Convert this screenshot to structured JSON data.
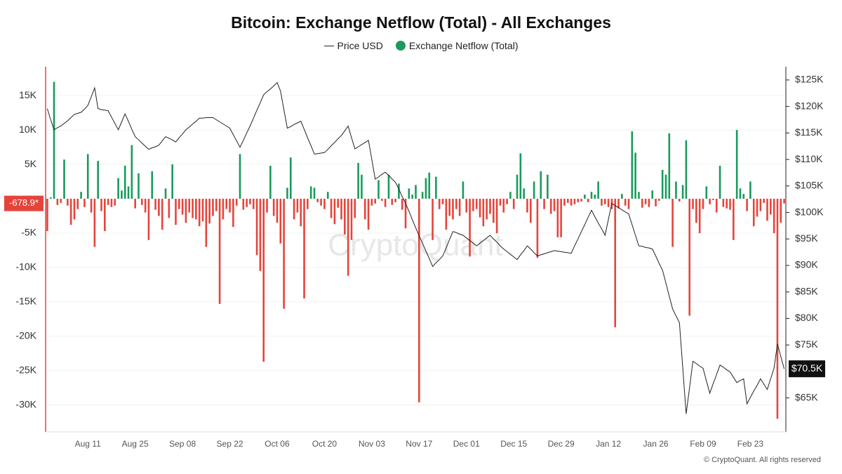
{
  "chart_data": {
    "type": "bar",
    "title": "Bitcoin: Exchange Netflow (Total) - All Exchanges",
    "watermark": "CryptoQuant",
    "credit": "© CryptoQuant. All rights reserved",
    "grid": true,
    "x": [
      "Jul 30",
      "Jul 31",
      "Aug 01",
      "Aug 02",
      "Aug 03",
      "Aug 04",
      "Aug 05",
      "Aug 06",
      "Aug 07",
      "Aug 08",
      "Aug 09",
      "Aug 10",
      "Aug 11",
      "Aug 12",
      "Aug 13",
      "Aug 14",
      "Aug 15",
      "Aug 16",
      "Aug 17",
      "Aug 18",
      "Aug 19",
      "Aug 20",
      "Aug 21",
      "Aug 22",
      "Aug 23",
      "Aug 24",
      "Aug 25",
      "Aug 26",
      "Aug 27",
      "Aug 28",
      "Aug 29",
      "Aug 30",
      "Aug 31",
      "Sep 01",
      "Sep 02",
      "Sep 03",
      "Sep 04",
      "Sep 05",
      "Sep 06",
      "Sep 07",
      "Sep 08",
      "Sep 09",
      "Sep 10",
      "Sep 11",
      "Sep 12",
      "Sep 13",
      "Sep 14",
      "Sep 15",
      "Sep 16",
      "Sep 17",
      "Sep 18",
      "Sep 19",
      "Sep 20",
      "Sep 21",
      "Sep 22",
      "Sep 23",
      "Sep 24",
      "Sep 25",
      "Sep 26",
      "Sep 27",
      "Sep 28",
      "Sep 29",
      "Sep 30",
      "Oct 01",
      "Oct 02",
      "Oct 03",
      "Oct 04",
      "Oct 05",
      "Oct 06",
      "Oct 07",
      "Oct 08",
      "Oct 09",
      "Oct 10",
      "Oct 11",
      "Oct 12",
      "Oct 13",
      "Oct 14",
      "Oct 15",
      "Oct 16",
      "Oct 17",
      "Oct 18",
      "Oct 19",
      "Oct 20",
      "Oct 21",
      "Oct 22",
      "Oct 23",
      "Oct 24",
      "Oct 25",
      "Oct 26",
      "Oct 27",
      "Oct 28",
      "Oct 29",
      "Oct 30",
      "Oct 31",
      "Nov 01",
      "Nov 02",
      "Nov 03",
      "Nov 04",
      "Nov 05",
      "Nov 06",
      "Nov 07",
      "Nov 08",
      "Nov 09",
      "Nov 10",
      "Nov 11",
      "Nov 12",
      "Nov 13",
      "Nov 14",
      "Nov 15",
      "Nov 16",
      "Nov 17",
      "Nov 18",
      "Nov 19",
      "Nov 20",
      "Nov 21",
      "Nov 22",
      "Nov 23",
      "Nov 24",
      "Nov 25",
      "Nov 26",
      "Nov 27",
      "Nov 28",
      "Nov 29",
      "Nov 30",
      "Dec 01",
      "Dec 02",
      "Dec 03",
      "Dec 04",
      "Dec 05",
      "Dec 06",
      "Dec 07",
      "Dec 08",
      "Dec 09",
      "Dec 10",
      "Dec 11",
      "Dec 12",
      "Dec 13",
      "Dec 14",
      "Dec 15",
      "Dec 16",
      "Dec 17",
      "Dec 18",
      "Dec 19",
      "Dec 20",
      "Dec 21",
      "Dec 22",
      "Dec 23",
      "Dec 24",
      "Dec 25",
      "Dec 26",
      "Dec 27",
      "Dec 28",
      "Dec 29",
      "Dec 30",
      "Dec 31",
      "Jan 01",
      "Jan 02",
      "Jan 03",
      "Jan 04",
      "Jan 05",
      "Jan 06",
      "Jan 07",
      "Jan 08",
      "Jan 09",
      "Jan 10",
      "Jan 11",
      "Jan 12",
      "Jan 13",
      "Jan 14",
      "Jan 15",
      "Jan 16",
      "Jan 17",
      "Jan 18",
      "Jan 19",
      "Jan 20",
      "Jan 21",
      "Jan 22",
      "Jan 23",
      "Jan 24",
      "Jan 25",
      "Jan 26",
      "Jan 27",
      "Jan 28",
      "Jan 29",
      "Jan 30",
      "Jan 31",
      "Feb 01",
      "Feb 02",
      "Feb 03",
      "Feb 04",
      "Feb 05",
      "Feb 06",
      "Feb 07",
      "Feb 08",
      "Feb 09",
      "Feb 10",
      "Feb 11",
      "Feb 12",
      "Feb 13",
      "Feb 14",
      "Feb 15",
      "Feb 16",
      "Feb 17",
      "Feb 18",
      "Feb 19",
      "Feb 20",
      "Feb 21",
      "Feb 22",
      "Feb 23",
      "Feb 24",
      "Feb 25",
      "Feb 26",
      "Feb 27",
      "Feb 28",
      "Mar 01",
      "Mar 02",
      "Mar 03",
      "Mar 04",
      "Mar 05"
    ],
    "xticks": [
      "Aug 11",
      "Aug 25",
      "Sep 08",
      "Sep 22",
      "Oct 06",
      "Oct 20",
      "Nov 03",
      "Nov 17",
      "Dec 01",
      "Dec 15",
      "Dec 29",
      "Jan 12",
      "Jan 26",
      "Feb 09",
      "Feb 23"
    ],
    "ylim": [
      -33900,
      19200
    ],
    "yticks": [
      {
        "value": 15000,
        "label": "15K"
      },
      {
        "value": 10000,
        "label": "10K"
      },
      {
        "value": 5000,
        "label": "5K"
      },
      {
        "value": -5000,
        "label": "-5K"
      },
      {
        "value": -10000,
        "label": "-10K"
      },
      {
        "value": -15000,
        "label": "-15K"
      },
      {
        "value": -20000,
        "label": "-20K"
      },
      {
        "value": -25000,
        "label": "-25K"
      },
      {
        "value": -30000,
        "label": "-30K"
      }
    ],
    "y2lim": [
      58600,
      127500
    ],
    "y2ticks": [
      {
        "value": 125000,
        "label": "$125K"
      },
      {
        "value": 120000,
        "label": "$120K"
      },
      {
        "value": 115000,
        "label": "$115K"
      },
      {
        "value": 110000,
        "label": "$110K"
      },
      {
        "value": 105000,
        "label": "$105K"
      },
      {
        "value": 100000,
        "label": "$100K"
      },
      {
        "value": 95000,
        "label": "$95K"
      },
      {
        "value": 90000,
        "label": "$90K"
      },
      {
        "value": 85000,
        "label": "$85K"
      },
      {
        "value": 80000,
        "label": "$80K"
      },
      {
        "value": 75000,
        "label": "$75K"
      },
      {
        "value": 65000,
        "label": "$65K"
      }
    ],
    "series": [
      {
        "name": "Price USD",
        "type": "line",
        "axis": "y2",
        "color": "#222222",
        "last_value_label": "$70.5K",
        "values": [
          119600,
          117500,
          115600,
          116000,
          116300,
          116800,
          117300,
          117900,
          118500,
          118700,
          118900,
          119500,
          120200,
          121800,
          123500,
          119600,
          119400,
          119300,
          119200,
          118000,
          116800,
          115600,
          117100,
          118600,
          117200,
          115700,
          114300,
          113700,
          113100,
          112500,
          111900,
          112200,
          112400,
          112700,
          113500,
          114300,
          114000,
          113700,
          113300,
          114100,
          114800,
          115600,
          116100,
          116700,
          117200,
          117800,
          117800,
          117900,
          117900,
          117900,
          117500,
          117100,
          116700,
          116300,
          115900,
          114700,
          113500,
          112300,
          113600,
          115000,
          116300,
          117800,
          119300,
          120700,
          122200,
          122800,
          123300,
          123900,
          124500,
          122900,
          119400,
          115900,
          116200,
          116600,
          116900,
          117200,
          115700,
          114100,
          112600,
          111000,
          111100,
          111200,
          111300,
          111900,
          112600,
          113200,
          113900,
          114500,
          115400,
          116300,
          114100,
          112000,
          112400,
          112800,
          113200,
          113600,
          110000,
          106300,
          106700,
          107200,
          107600,
          107000,
          106300,
          105700,
          104400,
          103000,
          101700,
          100200,
          98600,
          97100,
          95600,
          94200,
          92700,
          91300,
          89800,
          90500,
          91100,
          91800,
          93300,
          94900,
          96400,
          96200,
          95900,
          95700,
          95200,
          94700,
          94200,
          93700,
          94200,
          94700,
          95200,
          95700,
          95000,
          94400,
          93700,
          93100,
          92600,
          92100,
          91600,
          91100,
          92000,
          92800,
          93700,
          93100,
          92400,
          91800,
          92000,
          92200,
          92400,
          92600,
          92800,
          92700,
          92600,
          92500,
          92400,
          92300,
          93700,
          95000,
          96400,
          97700,
          99100,
          100400,
          99200,
          98000,
          96900,
          95700,
          98700,
          101700,
          101300,
          100900,
          100500,
          100100,
          99700,
          97700,
          95700,
          93700,
          93600,
          93400,
          93300,
          93100,
          91800,
          90400,
          89100,
          86700,
          84200,
          81800,
          80500,
          79200,
          70600,
          62000,
          66900,
          71900,
          71500,
          71000,
          70600,
          68200,
          65900,
          67700,
          69400,
          71200,
          70800,
          70300,
          69900,
          68900,
          67900,
          68300,
          68600,
          63900,
          65100,
          66300,
          67400,
          68600,
          67600,
          66600,
          68600,
          70600,
          75200,
          72800,
          70500
        ]
      },
      {
        "name": "Exchange Netflow (Total)",
        "type": "bar",
        "color": "#1a9a5c",
        "negative_color": "#e5443b",
        "last_value_label": "-678.9*",
        "values": [
          -4700,
          200,
          17000,
          -900,
          -600,
          5700,
          -1000,
          -3800,
          -3000,
          -1500,
          1000,
          -1200,
          6500,
          -2000,
          -7000,
          5500,
          -1800,
          -4700,
          -900,
          -1200,
          -1000,
          3000,
          1200,
          4800,
          1800,
          7800,
          -1400,
          3700,
          -900,
          -2000,
          -6000,
          4000,
          -1600,
          -2500,
          -4500,
          1500,
          -2800,
          5000,
          -3800,
          -1500,
          -2300,
          -3500,
          -2000,
          -2800,
          -3000,
          -4000,
          -3300,
          -7000,
          -3600,
          -2500,
          -1800,
          -15300,
          -3000,
          -1500,
          -2000,
          -4100,
          -1000,
          6500,
          -1600,
          -1200,
          -800,
          -1500,
          -8200,
          -10500,
          -23700,
          -2000,
          4800,
          -2500,
          -3500,
          -6500,
          -16000,
          1600,
          6000,
          -3000,
          -2000,
          -4000,
          -14500,
          -1500,
          1800,
          1600,
          -500,
          -1000,
          -1500,
          1000,
          -2800,
          -3700,
          -1300,
          -3000,
          -5200,
          -11200,
          -6000,
          -2800,
          5200,
          3500,
          -3000,
          -4500,
          -1000,
          -700,
          2700,
          -300,
          -1200,
          3500,
          -900,
          -500,
          2200,
          -1600,
          -4300,
          1500,
          600,
          2000,
          -29600,
          1000,
          3000,
          3800,
          -6000,
          3200,
          -1500,
          -800,
          -4500,
          -2500,
          -3000,
          -1500,
          -2500,
          2500,
          -2000,
          -8400,
          -1800,
          -1500,
          -2700,
          -4000,
          -3000,
          -2200,
          -3500,
          -5000,
          -1000,
          -2000,
          -800,
          1000,
          -1500,
          3500,
          6600,
          1500,
          -2000,
          -3500,
          2500,
          -8600,
          4000,
          -1500,
          3500,
          -2200,
          -1800,
          -5600,
          -5600,
          -1000,
          -600,
          -1000,
          -800,
          -500,
          -400,
          600,
          -500,
          1000,
          600,
          2500,
          -1000,
          -800,
          -1200,
          -1500,
          -18700,
          -1400,
          700,
          -1000,
          -1500,
          9800,
          6700,
          1000,
          -1300,
          -800,
          -1200,
          1200,
          -1100,
          -300,
          4200,
          3500,
          9500,
          -7000,
          2500,
          -400,
          2000,
          8500,
          -17000,
          -1500,
          -3500,
          -5000,
          -1500,
          1800,
          -800,
          -200,
          -2000,
          4800,
          -1200,
          -1400,
          -1600,
          -6000,
          10000,
          1500,
          700,
          -1800,
          2500,
          -4000,
          -2600,
          -1800,
          -600,
          -3200,
          -2300,
          -5000,
          -32000,
          -3500,
          -678.9
        ]
      }
    ]
  }
}
